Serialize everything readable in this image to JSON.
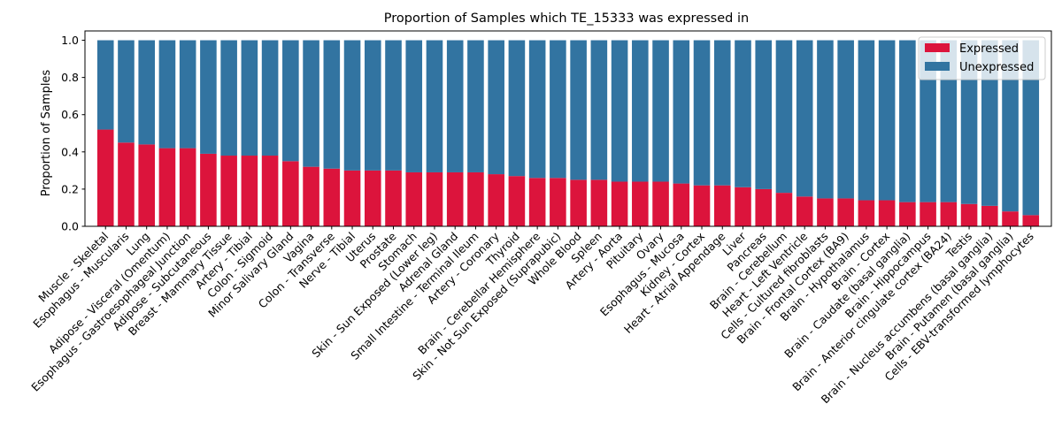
{
  "chart_data": {
    "type": "bar",
    "stacked": true,
    "title": "Proportion of Samples which TE_15333 was expressed in",
    "xlabel": "",
    "ylabel": "Proportion of Samples",
    "ylim": [
      0,
      1.05
    ],
    "yticks": [
      "0.0",
      "0.2",
      "0.4",
      "0.6",
      "0.8",
      "1.0"
    ],
    "grid": false,
    "legend_position": "top-right",
    "categories": [
      "Muscle - Skeletal",
      "Esophagus - Muscularis",
      "Lung",
      "Adipose - Visceral (Omentum)",
      "Esophagus - Gastroesophageal Junction",
      "Adipose - Subcutaneous",
      "Breast - Mammary Tissue",
      "Artery - Tibial",
      "Colon - Sigmoid",
      "Minor Salivary Gland",
      "Vagina",
      "Colon - Transverse",
      "Nerve - Tibial",
      "Uterus",
      "Prostate",
      "Stomach",
      "Skin - Sun Exposed (Lower leg)",
      "Adrenal Gland",
      "Small Intestine - Terminal Ileum",
      "Artery - Coronary",
      "Thyroid",
      "Brain - Cerebellar Hemisphere",
      "Skin - Not Sun Exposed (Suprapubic)",
      "Whole Blood",
      "Spleen",
      "Artery - Aorta",
      "Pituitary",
      "Ovary",
      "Esophagus - Mucosa",
      "Kidney - Cortex",
      "Heart - Atrial Appendage",
      "Liver",
      "Pancreas",
      "Brain - Cerebellum",
      "Heart - Left Ventricle",
      "Cells - Cultured fibroblasts",
      "Brain - Frontal Cortex (BA9)",
      "Brain - Hypothalamus",
      "Brain - Cortex",
      "Brain - Caudate (basal ganglia)",
      "Brain - Hippocampus",
      "Brain - Anterior cingulate cortex (BA24)",
      "Testis",
      "Brain - Nucleus accumbens (basal ganglia)",
      "Brain - Putamen (basal ganglia)",
      "Cells - EBV-transformed lymphocytes"
    ],
    "series": [
      {
        "name": "Expressed",
        "color": "#dc143c",
        "values": [
          0.52,
          0.45,
          0.44,
          0.42,
          0.42,
          0.39,
          0.38,
          0.38,
          0.38,
          0.35,
          0.32,
          0.31,
          0.3,
          0.3,
          0.3,
          0.29,
          0.29,
          0.29,
          0.29,
          0.28,
          0.27,
          0.26,
          0.26,
          0.25,
          0.25,
          0.24,
          0.24,
          0.24,
          0.23,
          0.22,
          0.22,
          0.21,
          0.2,
          0.18,
          0.16,
          0.15,
          0.15,
          0.14,
          0.14,
          0.13,
          0.13,
          0.13,
          0.12,
          0.11,
          0.08,
          0.06
        ]
      },
      {
        "name": "Unexpressed",
        "color": "#3274a1",
        "values": [
          0.48,
          0.55,
          0.56,
          0.58,
          0.58,
          0.61,
          0.62,
          0.62,
          0.62,
          0.65,
          0.68,
          0.69,
          0.7,
          0.7,
          0.7,
          0.71,
          0.71,
          0.71,
          0.71,
          0.72,
          0.73,
          0.74,
          0.74,
          0.75,
          0.75,
          0.76,
          0.76,
          0.76,
          0.77,
          0.78,
          0.78,
          0.79,
          0.8,
          0.82,
          0.84,
          0.85,
          0.85,
          0.86,
          0.86,
          0.87,
          0.87,
          0.87,
          0.88,
          0.89,
          0.92,
          0.94
        ]
      }
    ]
  }
}
